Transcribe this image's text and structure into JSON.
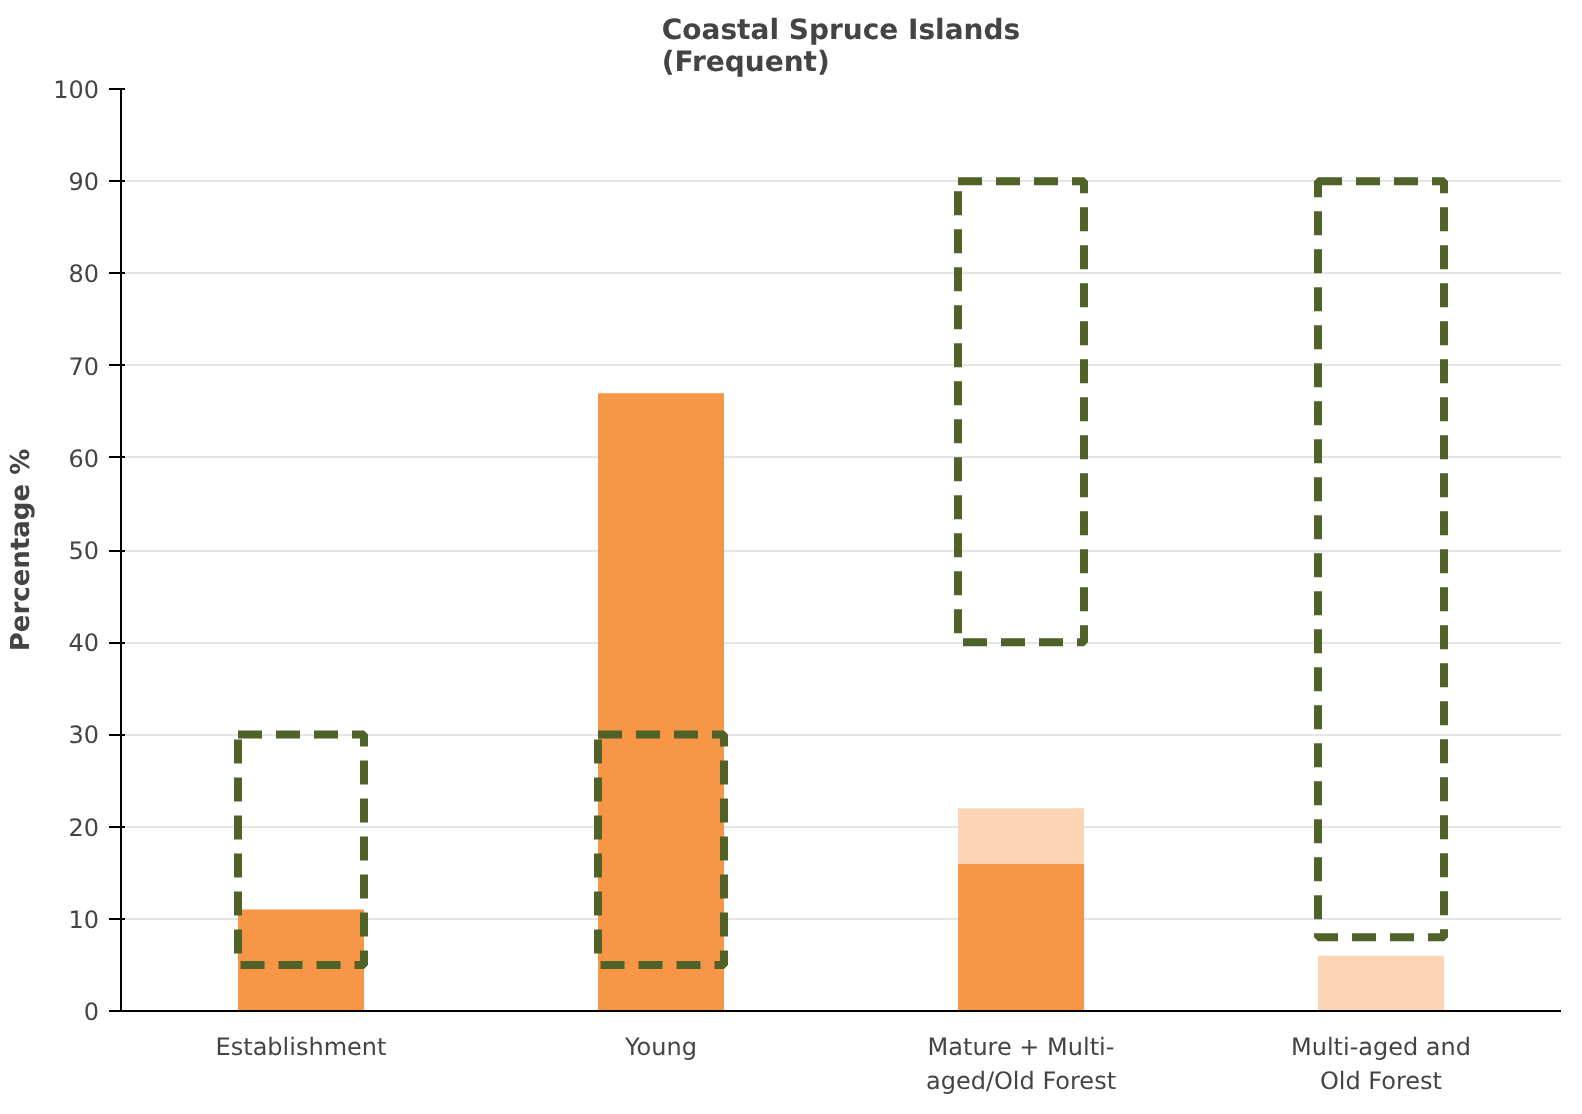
{
  "chart_data": {
    "type": "bar",
    "title": "Coastal Spruce Islands\n(Frequent)",
    "ylabel": "Percentage %",
    "categories": [
      "Establishment",
      "Young",
      "Mature + Multi-\naged/Old Forest",
      "Multi-aged and\nOld Forest"
    ],
    "series": [
      {
        "color": "#f79646",
        "values": [
          11,
          67,
          16,
          0
        ]
      },
      {
        "color": "#fbd5b5",
        "base": [
          null,
          null,
          16,
          0
        ],
        "values": [
          null,
          null,
          6,
          6
        ]
      },
      {
        "color": "#4f6228",
        "base": [
          5,
          5,
          40,
          8
        ],
        "values": [
          25,
          25,
          50,
          82
        ],
        "line_style": "dashed"
      }
    ],
    "ylim": [
      0,
      100
    ],
    "yticks": [
      0,
      10,
      20,
      30,
      40,
      50,
      60,
      70,
      80,
      90,
      100
    ],
    "grid": "y"
  }
}
